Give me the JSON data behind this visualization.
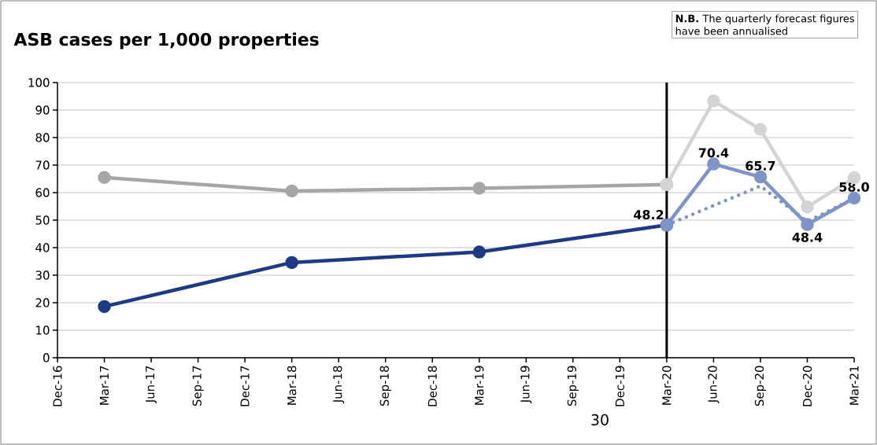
{
  "chart_data": {
    "type": "line",
    "title": "ASB cases per 1,000 properties",
    "annotations": [
      "**N.B.** The quarterly forecast figures have been annualised",
      "30"
    ],
    "series": [
      {
        "color": "#a6a6a6",
        "x": [
          "2017-03",
          "2018-03",
          "2019-03",
          "2020-03"
        ],
        "values": [
          65.5,
          60.6,
          61.6,
          62.9
        ]
      },
      {
        "color": "#d4d4d4",
        "x": [
          "2020-03",
          "2020-06",
          "2020-09",
          "2020-12",
          "2021-03"
        ],
        "values": [
          62.9,
          93.3,
          83.0,
          54.8,
          65.4
        ]
      },
      {
        "color": "#1f3a85",
        "x": [
          "2017-03",
          "2018-03",
          "2019-03",
          "2020-03"
        ],
        "values": [
          18.6,
          34.6,
          38.4,
          48.2
        ]
      },
      {
        "color": "#7f94c6",
        "x": [
          "2020-03",
          "2020-06",
          "2020-09",
          "2020-12",
          "2021-03"
        ],
        "values": [
          48.2,
          70.4,
          65.7,
          48.4,
          58.0
        ],
        "value_labels": [
          "48.2",
          "70.4",
          "65.7",
          "48.4",
          "58.0"
        ]
      },
      {
        "color": "#7f94c6",
        "line_style": "dotted",
        "marker": "none",
        "x": [
          "2020-03",
          "2020-09",
          "2020-12",
          "2021-03"
        ],
        "values": [
          48.2,
          62.4,
          49.5,
          58.0
        ]
      }
    ],
    "xlim": [
      "2016-12",
      "2021-03"
    ],
    "xticks": [
      {
        "value": "2016-12",
        "label": "Dec-16"
      },
      {
        "value": "2017-03",
        "label": "Mar-17"
      },
      {
        "value": "2017-06",
        "label": "Jun-17"
      },
      {
        "value": "2017-09",
        "label": "Sep-17"
      },
      {
        "value": "2017-12",
        "label": "Dec-17"
      },
      {
        "value": "2018-03",
        "label": "Mar-18"
      },
      {
        "value": "2018-06",
        "label": "Jun-18"
      },
      {
        "value": "2018-09",
        "label": "Sep-18"
      },
      {
        "value": "2018-12",
        "label": "Dec-18"
      },
      {
        "value": "2019-03",
        "label": "Mar-19"
      },
      {
        "value": "2019-06",
        "label": "Jun-19"
      },
      {
        "value": "2019-09",
        "label": "Sep-19"
      },
      {
        "value": "2019-12",
        "label": "Dec-19"
      },
      {
        "value": "2020-03",
        "label": "Mar-20"
      },
      {
        "value": "2020-06",
        "label": "Jun-20"
      },
      {
        "value": "2020-09",
        "label": "Sep-20"
      },
      {
        "value": "2020-12",
        "label": "Dec-20"
      },
      {
        "value": "2021-03",
        "label": "Mar-21"
      }
    ],
    "ylim": [
      0,
      100
    ],
    "yticks": [
      0,
      10,
      20,
      30,
      40,
      50,
      60,
      70,
      80,
      90,
      100
    ],
    "ref_lines": [
      {
        "axis": "x",
        "value": "2020-03",
        "color": "#000000"
      }
    ],
    "grid": "y",
    "marker": "circle",
    "line_style": "solid"
  }
}
